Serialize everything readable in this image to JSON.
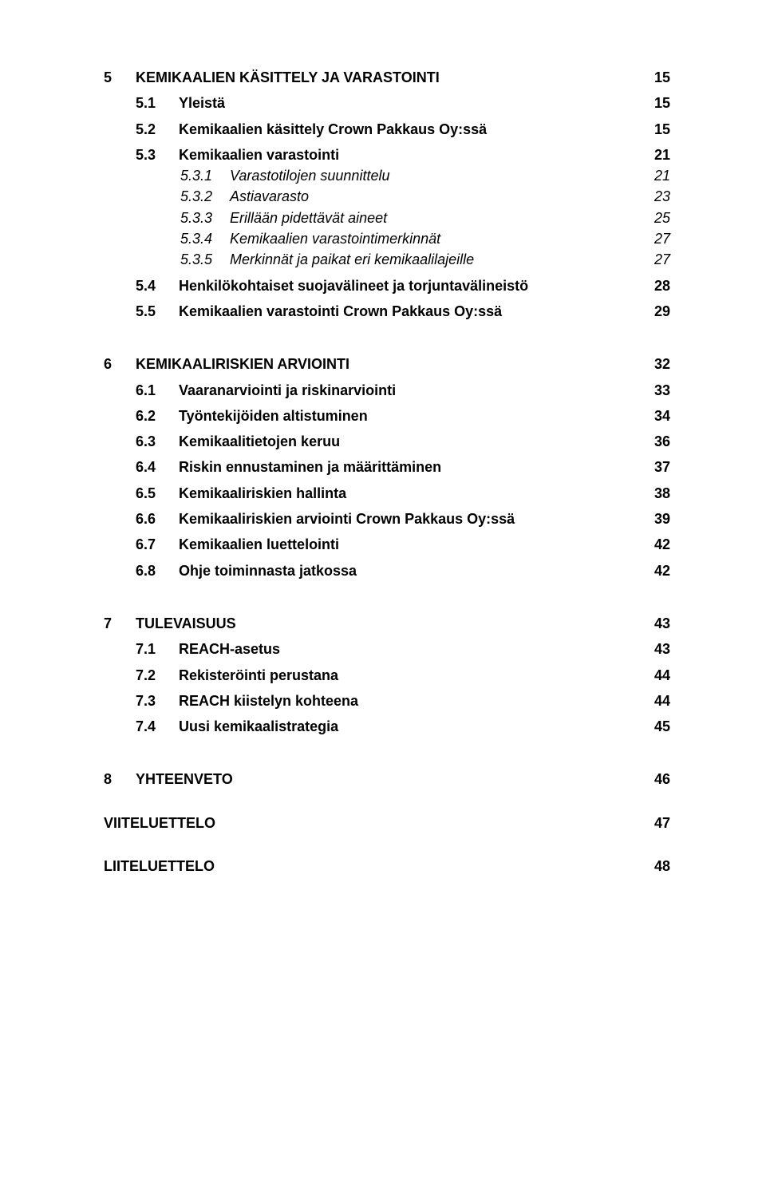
{
  "toc": [
    {
      "level": 1,
      "num": "5",
      "title": "KEMIKAALIEN KÄSITTELY JA VARASTOINTI",
      "page": "15"
    },
    {
      "level": 2,
      "num": "5.1",
      "title": "Yleistä",
      "page": "15"
    },
    {
      "level": 2,
      "num": "5.2",
      "title": "Kemikaalien käsittely Crown Pakkaus Oy:ssä",
      "page": "15"
    },
    {
      "level": 2,
      "num": "5.3",
      "title": "Kemikaalien varastointi",
      "page": "21"
    },
    {
      "level": 3,
      "num": "5.3.1",
      "title": "Varastotilojen suunnittelu",
      "page": "21"
    },
    {
      "level": 3,
      "num": "5.3.2",
      "title": "Astiavarasto",
      "page": "23"
    },
    {
      "level": 3,
      "num": "5.3.3",
      "title": "Erillään pidettävät aineet",
      "page": "25"
    },
    {
      "level": 3,
      "num": "5.3.4",
      "title": "Kemikaalien varastointimerkinnät",
      "page": "27"
    },
    {
      "level": 3,
      "num": "5.3.5",
      "title": "Merkinnät ja paikat eri kemikaalilajeille",
      "page": "27"
    },
    {
      "level": 2,
      "num": "5.4",
      "title": "Henkilökohtaiset suojavälineet ja torjuntavälineistö",
      "page": "28"
    },
    {
      "level": 2,
      "num": "5.5",
      "title": "Kemikaalien varastointi Crown Pakkaus Oy:ssä",
      "page": "29"
    },
    {
      "level": 1,
      "num": "6",
      "title": "KEMIKAALIRISKIEN ARVIOINTI",
      "page": "32",
      "gap": true
    },
    {
      "level": 2,
      "num": "6.1",
      "title": "Vaaranarviointi ja riskinarviointi",
      "page": "33"
    },
    {
      "level": 2,
      "num": "6.2",
      "title": "Työntekijöiden altistuminen",
      "page": "34"
    },
    {
      "level": 2,
      "num": "6.3",
      "title": "Kemikaalitietojen keruu",
      "page": "36"
    },
    {
      "level": 2,
      "num": "6.4",
      "title": "Riskin ennustaminen ja määrittäminen",
      "page": "37"
    },
    {
      "level": 2,
      "num": "6.5",
      "title": "Kemikaaliriskien hallinta",
      "page": "38"
    },
    {
      "level": 2,
      "num": "6.6",
      "title": "Kemikaaliriskien arviointi Crown Pakkaus Oy:ssä",
      "page": "39"
    },
    {
      "level": 2,
      "num": "6.7",
      "title": "Kemikaalien luettelointi",
      "page": "42"
    },
    {
      "level": 2,
      "num": "6.8",
      "title": "Ohje toiminnasta jatkossa",
      "page": "42"
    },
    {
      "level": 1,
      "num": "7",
      "title": "TULEVAISUUS",
      "page": "43",
      "gap": true
    },
    {
      "level": 2,
      "num": "7.1",
      "title": "REACH-asetus",
      "page": "43"
    },
    {
      "level": 2,
      "num": "7.2",
      "title": "Rekisteröinti perustana",
      "page": "44"
    },
    {
      "level": 2,
      "num": "7.3",
      "title": "REACH kiistelyn kohteena",
      "page": "44"
    },
    {
      "level": 2,
      "num": "7.4",
      "title": "Uusi kemikaalistrategia",
      "page": "45"
    },
    {
      "level": 1,
      "num": "8",
      "title": "YHTEENVETO",
      "page": "46",
      "gap": true
    },
    {
      "level": 0,
      "num": "",
      "title": "VIITELUETTELO",
      "page": "47"
    },
    {
      "level": 0,
      "num": "",
      "title": "LIITELUETTELO",
      "page": "48"
    }
  ]
}
